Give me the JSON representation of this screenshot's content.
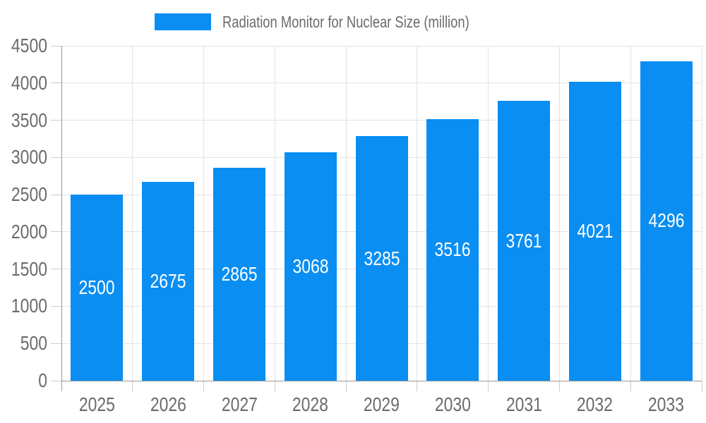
{
  "chart_data": {
    "type": "bar",
    "title": "Radiation Monitor for Nuclear Size (million)",
    "categories": [
      "2025",
      "2026",
      "2027",
      "2028",
      "2029",
      "2030",
      "2031",
      "2032",
      "2033"
    ],
    "values": [
      2500,
      2675,
      2865,
      3068,
      3285,
      3516,
      3761,
      4021,
      4296
    ],
    "series_name": "Radiation Monitor for Nuclear Size (million)",
    "xlabel": "",
    "ylabel": "",
    "ylim": [
      0,
      4500
    ],
    "ytick_step": 500,
    "yticks": [
      0,
      500,
      1000,
      1500,
      2000,
      2500,
      3000,
      3500,
      4000,
      4500
    ],
    "grid": true,
    "legend_position": "top",
    "value_label_position": "inside-middle",
    "colors": {
      "bar": "#0a8ef2",
      "value_label": "#ffffff",
      "gridline": "#e3e3e3",
      "axis_line": "#999999",
      "tick_line": "#cccccc",
      "axis_text": "#6b6b6b",
      "legend_text": "#6b6b6b",
      "background": "#ffffff"
    }
  }
}
